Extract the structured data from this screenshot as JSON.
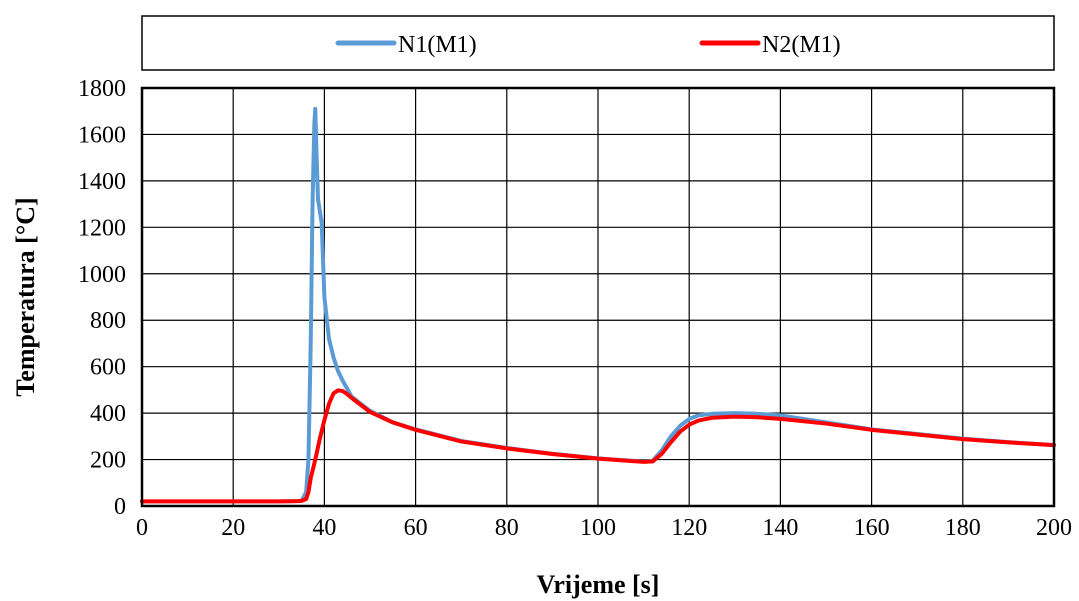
{
  "chart_data": {
    "type": "line",
    "title": "",
    "xlabel": "Vrijeme [s]",
    "ylabel": "Temperatura [°C]",
    "xlim": [
      0,
      200
    ],
    "ylim": [
      0,
      1800
    ],
    "x_ticks": [
      0,
      20,
      40,
      60,
      80,
      100,
      120,
      140,
      160,
      180,
      200
    ],
    "y_ticks": [
      0,
      200,
      400,
      600,
      800,
      1000,
      1200,
      1400,
      1600,
      1800
    ],
    "grid": true,
    "legend_position": "top",
    "series": [
      {
        "name": "N1(M1)",
        "color": "#5b9bd5",
        "points": [
          [
            0,
            20
          ],
          [
            10,
            20
          ],
          [
            20,
            20
          ],
          [
            30,
            20
          ],
          [
            34,
            21
          ],
          [
            35,
            22
          ],
          [
            36,
            60
          ],
          [
            36.5,
            200
          ],
          [
            37,
            700
          ],
          [
            37.4,
            1300
          ],
          [
            37.8,
            1650
          ],
          [
            38,
            1710
          ],
          [
            38.3,
            1500
          ],
          [
            38.6,
            1320
          ],
          [
            39,
            1270
          ],
          [
            39.4,
            1220
          ],
          [
            40,
            900
          ],
          [
            41,
            720
          ],
          [
            42,
            640
          ],
          [
            43,
            580
          ],
          [
            44,
            540
          ],
          [
            46,
            470
          ],
          [
            48,
            440
          ],
          [
            50,
            410
          ],
          [
            55,
            360
          ],
          [
            60,
            330
          ],
          [
            70,
            280
          ],
          [
            80,
            250
          ],
          [
            90,
            225
          ],
          [
            100,
            205
          ],
          [
            105,
            198
          ],
          [
            110,
            192
          ],
          [
            112,
            195
          ],
          [
            114,
            240
          ],
          [
            116,
            300
          ],
          [
            118,
            345
          ],
          [
            120,
            375
          ],
          [
            122,
            390
          ],
          [
            125,
            397
          ],
          [
            130,
            400
          ],
          [
            135,
            397
          ],
          [
            140,
            390
          ],
          [
            150,
            360
          ],
          [
            160,
            330
          ],
          [
            170,
            310
          ],
          [
            180,
            290
          ],
          [
            190,
            275
          ],
          [
            200,
            262
          ]
        ]
      },
      {
        "name": "N2(M1)",
        "color": "#ff0000",
        "points": [
          [
            0,
            20
          ],
          [
            10,
            20
          ],
          [
            20,
            20
          ],
          [
            30,
            20
          ],
          [
            34,
            21
          ],
          [
            35,
            22
          ],
          [
            36,
            30
          ],
          [
            36.5,
            60
          ],
          [
            37,
            120
          ],
          [
            38,
            200
          ],
          [
            39,
            290
          ],
          [
            40,
            370
          ],
          [
            41,
            440
          ],
          [
            42,
            485
          ],
          [
            43,
            498
          ],
          [
            44,
            495
          ],
          [
            45,
            482
          ],
          [
            46,
            465
          ],
          [
            48,
            435
          ],
          [
            50,
            405
          ],
          [
            55,
            360
          ],
          [
            60,
            328
          ],
          [
            70,
            278
          ],
          [
            80,
            248
          ],
          [
            90,
            224
          ],
          [
            100,
            204
          ],
          [
            105,
            197
          ],
          [
            110,
            190
          ],
          [
            112,
            192
          ],
          [
            114,
            225
          ],
          [
            116,
            275
          ],
          [
            118,
            320
          ],
          [
            120,
            350
          ],
          [
            122,
            368
          ],
          [
            125,
            380
          ],
          [
            130,
            385
          ],
          [
            135,
            382
          ],
          [
            140,
            375
          ],
          [
            150,
            355
          ],
          [
            160,
            328
          ],
          [
            170,
            308
          ],
          [
            180,
            288
          ],
          [
            190,
            274
          ],
          [
            200,
            262
          ]
        ]
      }
    ]
  }
}
